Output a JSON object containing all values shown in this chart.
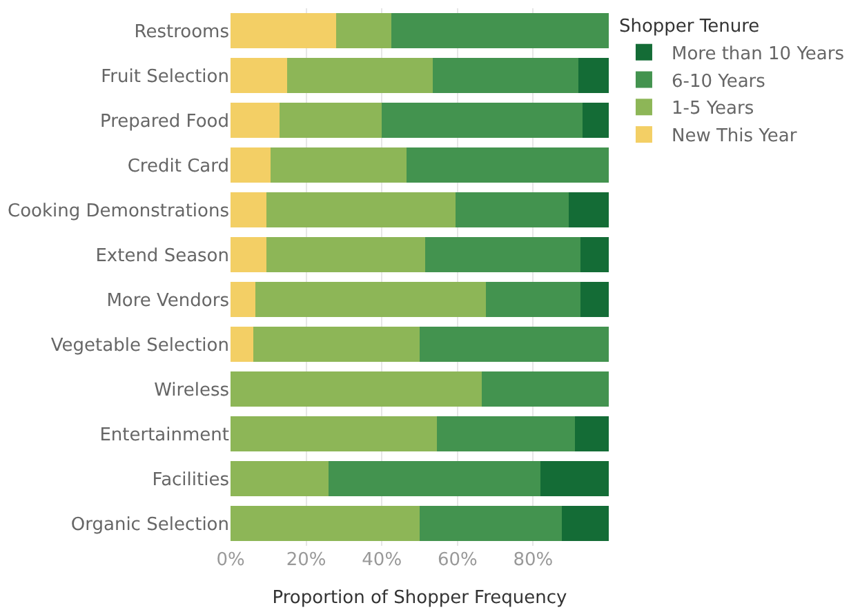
{
  "chart_data": {
    "type": "bar",
    "orientation": "horizontal",
    "stacked": true,
    "xlabel": "Proportion of Shopper Frequency",
    "legend_title": "Shopper Tenure",
    "legend": "top right",
    "grid": "x",
    "categories": [
      "Restrooms",
      "Fruit Selection",
      "Prepared Food",
      "Credit Card",
      "Cooking Demonstrations",
      "Extend Season",
      "More Vendors",
      "Vegetable Selection",
      "Wireless",
      "Entertainment",
      "Facilities",
      "Organic Selection"
    ],
    "series": [
      {
        "name": "New This Year",
        "color": "#f3cf65",
        "values": [
          28,
          15,
          13,
          10.5,
          9.5,
          9.5,
          6.5,
          6,
          null,
          null,
          null,
          null
        ]
      },
      {
        "name": "1-5 Years",
        "color": "#8db657",
        "values": [
          14.5,
          38.5,
          27,
          36,
          50,
          42,
          61,
          44,
          66.5,
          54.5,
          26,
          50
        ]
      },
      {
        "name": "6-10 Years",
        "color": "#43934f",
        "values": [
          57.5,
          38.5,
          53,
          53.5,
          30,
          41,
          25,
          50,
          33.5,
          36.5,
          56,
          37.5
        ]
      },
      {
        "name": "More than 10 Years",
        "color": "#146c36",
        "values": [
          null,
          8,
          7,
          null,
          10.5,
          7.5,
          7.5,
          null,
          null,
          9,
          18,
          12.5
        ]
      }
    ],
    "xlim": [
      0,
      100
    ],
    "xticks": [
      {
        "value": 0,
        "label": "0%"
      },
      {
        "value": 20,
        "label": "20%"
      },
      {
        "value": 40,
        "label": "40%"
      },
      {
        "value": 60,
        "label": "60%"
      },
      {
        "value": 80,
        "label": "80%"
      }
    ]
  }
}
